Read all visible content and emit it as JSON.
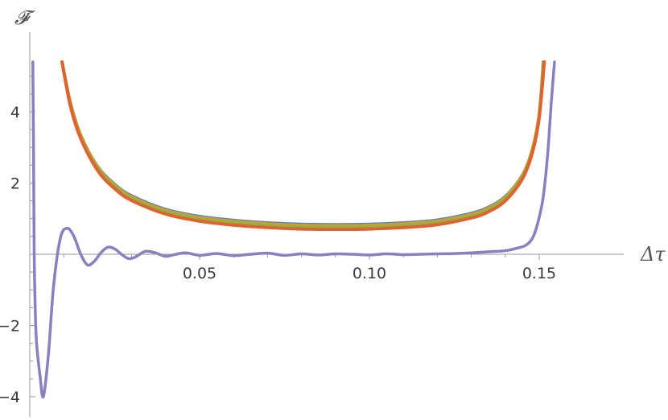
{
  "chart_data": {
    "type": "line",
    "title": "",
    "xlabel": "Δτ",
    "ylabel": "𝓕̇",
    "xlim": [
      0.0,
      0.16
    ],
    "ylim": [
      -4.3,
      5.6
    ],
    "x_ticks": [
      0.05,
      0.1,
      0.15
    ],
    "x_tick_labels": [
      "0.05",
      "0.10",
      "0.15"
    ],
    "y_ticks": [
      -4,
      -2,
      2,
      4
    ],
    "y_tick_labels": [
      "−4",
      "−2",
      "2",
      "4"
    ],
    "grid": false,
    "legend": "none",
    "series": [
      {
        "color": "#5f7fb4",
        "width": 1.5,
        "x": [
          0.0095,
          0.012,
          0.015,
          0.02,
          0.025,
          0.03,
          0.04,
          0.05,
          0.06,
          0.07,
          0.08,
          0.09,
          0.1,
          0.11,
          0.12,
          0.13,
          0.135,
          0.14,
          0.145,
          0.148,
          0.15,
          0.151
        ],
        "y": [
          5.4,
          4.3,
          3.4,
          2.51,
          2.0,
          1.67,
          1.29,
          1.09,
          0.98,
          0.91,
          0.87,
          0.86,
          0.87,
          0.91,
          0.99,
          1.18,
          1.35,
          1.66,
          2.27,
          3.02,
          4.0,
          5.4
        ]
      },
      {
        "color": "#c9a227",
        "width": 4,
        "x": [
          0.0095,
          0.012,
          0.015,
          0.02,
          0.025,
          0.03,
          0.04,
          0.05,
          0.06,
          0.07,
          0.08,
          0.09,
          0.1,
          0.11,
          0.12,
          0.13,
          0.135,
          0.14,
          0.145,
          0.148,
          0.15,
          0.1512
        ],
        "y": [
          5.4,
          4.25,
          3.35,
          2.45,
          1.94,
          1.61,
          1.23,
          1.03,
          0.92,
          0.85,
          0.81,
          0.8,
          0.81,
          0.85,
          0.93,
          1.12,
          1.29,
          1.6,
          2.21,
          2.96,
          3.94,
          5.4
        ]
      },
      {
        "color": "#8fb04a",
        "width": 4,
        "x": [
          0.0095,
          0.012,
          0.015,
          0.02,
          0.025,
          0.03,
          0.04,
          0.05,
          0.06,
          0.07,
          0.08,
          0.09,
          0.1,
          0.11,
          0.12,
          0.13,
          0.135,
          0.14,
          0.145,
          0.148,
          0.15,
          0.1512
        ],
        "y": [
          5.4,
          4.2,
          3.3,
          2.4,
          1.89,
          1.56,
          1.18,
          0.98,
          0.87,
          0.8,
          0.76,
          0.75,
          0.76,
          0.8,
          0.88,
          1.07,
          1.24,
          1.55,
          2.16,
          2.91,
          3.89,
          5.4
        ]
      },
      {
        "color": "#e0632f",
        "width": 4,
        "x": [
          0.0095,
          0.012,
          0.015,
          0.02,
          0.025,
          0.03,
          0.04,
          0.05,
          0.06,
          0.07,
          0.08,
          0.09,
          0.1,
          0.11,
          0.12,
          0.13,
          0.135,
          0.14,
          0.145,
          0.148,
          0.15,
          0.1515
        ],
        "y": [
          5.4,
          4.15,
          3.25,
          2.35,
          1.84,
          1.51,
          1.13,
          0.93,
          0.82,
          0.75,
          0.71,
          0.7,
          0.71,
          0.75,
          0.83,
          1.02,
          1.19,
          1.5,
          2.11,
          2.86,
          3.84,
          5.4
        ]
      },
      {
        "color": "#8a7fbf",
        "width": 3.5,
        "x": [
          0.0009,
          0.0011,
          0.0013,
          0.0016,
          0.002,
          0.003,
          0.004,
          0.0055,
          0.007,
          0.009,
          0.011,
          0.013,
          0.015,
          0.017,
          0.019,
          0.021,
          0.023,
          0.025,
          0.027,
          0.029,
          0.031,
          0.034,
          0.037,
          0.04,
          0.043,
          0.046,
          0.05,
          0.055,
          0.06,
          0.065,
          0.07,
          0.075,
          0.08,
          0.085,
          0.09,
          0.095,
          0.1,
          0.105,
          0.11,
          0.115,
          0.12,
          0.125,
          0.13,
          0.135,
          0.14,
          0.143,
          0.146,
          0.148,
          0.1495,
          0.151,
          0.152,
          0.1528,
          0.1535,
          0.1545
        ],
        "y": [
          5.4,
          3.0,
          0.0,
          -1.5,
          -2.5,
          -3.4,
          -4.0,
          -2.8,
          -0.9,
          0.45,
          0.73,
          0.5,
          0.0,
          -0.3,
          -0.2,
          0.05,
          0.2,
          0.15,
          0.0,
          -0.12,
          -0.08,
          0.08,
          0.04,
          -0.06,
          0.0,
          0.04,
          -0.03,
          0.02,
          -0.04,
          0.0,
          0.03,
          -0.03,
          0.01,
          -0.02,
          0.01,
          0.0,
          -0.02,
          0.01,
          -0.01,
          0.0,
          0.01,
          0.02,
          0.04,
          0.07,
          0.1,
          0.16,
          0.25,
          0.45,
          0.85,
          1.5,
          2.3,
          3.2,
          4.2,
          5.4
        ]
      }
    ]
  }
}
